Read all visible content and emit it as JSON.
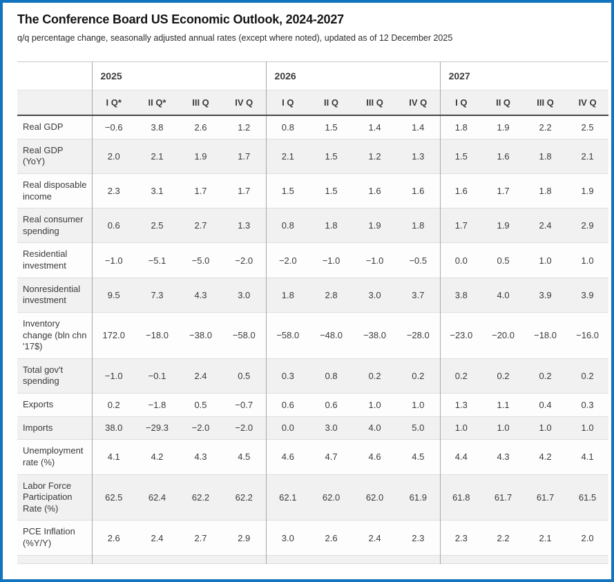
{
  "header": {
    "title": "The Conference Board US Economic Outlook, 2024-2027",
    "subtitle": "q/q percentage change, seasonally adjusted annual rates (except where noted), updated as of 12 December 2025"
  },
  "colors": {
    "frame_border": "#1273bf",
    "header_underline": "#454545",
    "stripe_gray": "#f1f1f1",
    "group_divider": "#a8a8a8"
  },
  "table": {
    "year_groups": [
      {
        "year": "2025",
        "quarters": [
          "I Q*",
          "II Q*",
          "III Q",
          "IV Q"
        ]
      },
      {
        "year": "2026",
        "quarters": [
          "I Q",
          "II Q",
          "III Q",
          "IV Q"
        ]
      },
      {
        "year": "2027",
        "quarters": [
          "I Q",
          "II Q",
          "III Q",
          "IV Q"
        ]
      }
    ],
    "rows": [
      {
        "label": "Real GDP",
        "values": [
          "−0.6",
          "3.8",
          "2.6",
          "1.2",
          "0.8",
          "1.5",
          "1.4",
          "1.4",
          "1.8",
          "1.9",
          "2.2",
          "2.5"
        ]
      },
      {
        "label": "Real GDP (YoY)",
        "values": [
          "2.0",
          "2.1",
          "1.9",
          "1.7",
          "2.1",
          "1.5",
          "1.2",
          "1.3",
          "1.5",
          "1.6",
          "1.8",
          "2.1"
        ]
      },
      {
        "label": "Real disposable income",
        "values": [
          "2.3",
          "3.1",
          "1.7",
          "1.7",
          "1.5",
          "1.5",
          "1.6",
          "1.6",
          "1.6",
          "1.7",
          "1.8",
          "1.9"
        ]
      },
      {
        "label": "Real consumer spending",
        "values": [
          "0.6",
          "2.5",
          "2.7",
          "1.3",
          "0.8",
          "1.8",
          "1.9",
          "1.8",
          "1.7",
          "1.9",
          "2.4",
          "2.9"
        ]
      },
      {
        "label": "Residential investment",
        "values": [
          "−1.0",
          "−5.1",
          "−5.0",
          "−2.0",
          "−2.0",
          "−1.0",
          "−1.0",
          "−0.5",
          "0.0",
          "0.5",
          "1.0",
          "1.0"
        ]
      },
      {
        "label": "Nonresidential investment",
        "values": [
          "9.5",
          "7.3",
          "4.3",
          "3.0",
          "1.8",
          "2.8",
          "3.0",
          "3.7",
          "3.8",
          "4.0",
          "3.9",
          "3.9"
        ]
      },
      {
        "label": "Inventory change (bln chn '17$)",
        "values": [
          "172.0",
          "−18.0",
          "−38.0",
          "−58.0",
          "−58.0",
          "−48.0",
          "−38.0",
          "−28.0",
          "−23.0",
          "−20.0",
          "−18.0",
          "−16.0"
        ]
      },
      {
        "label": "Total gov't spending",
        "values": [
          "−1.0",
          "−0.1",
          "2.4",
          "0.5",
          "0.3",
          "0.8",
          "0.2",
          "0.2",
          "0.2",
          "0.2",
          "0.2",
          "0.2"
        ]
      },
      {
        "label": "Exports",
        "values": [
          "0.2",
          "−1.8",
          "0.5",
          "−0.7",
          "0.6",
          "0.6",
          "1.0",
          "1.0",
          "1.3",
          "1.1",
          "0.4",
          "0.3"
        ]
      },
      {
        "label": "Imports",
        "values": [
          "38.0",
          "−29.3",
          "−2.0",
          "−2.0",
          "0.0",
          "3.0",
          "4.0",
          "5.0",
          "1.0",
          "1.0",
          "1.0",
          "1.0"
        ]
      },
      {
        "label": "Unemployment rate (%)",
        "values": [
          "4.1",
          "4.2",
          "4.3",
          "4.5",
          "4.6",
          "4.7",
          "4.6",
          "4.5",
          "4.4",
          "4.3",
          "4.2",
          "4.1"
        ]
      },
      {
        "label": "Labor Force Participation Rate (%)",
        "values": [
          "62.5",
          "62.4",
          "62.2",
          "62.2",
          "62.1",
          "62.0",
          "62.0",
          "61.9",
          "61.8",
          "61.7",
          "61.7",
          "61.5"
        ]
      },
      {
        "label": "PCE Inflation (%Y/Y)",
        "values": [
          "2.6",
          "2.4",
          "2.7",
          "2.9",
          "3.0",
          "2.6",
          "2.4",
          "2.3",
          "2.3",
          "2.2",
          "2.1",
          "2.0"
        ]
      }
    ]
  }
}
